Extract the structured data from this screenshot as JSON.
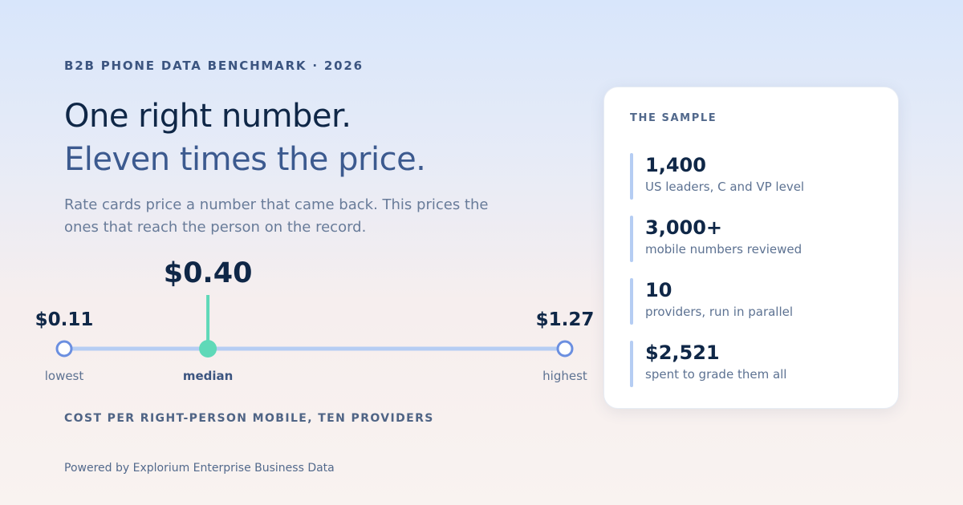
{
  "eyebrow": "B2B PHONE DATA BENCHMARK · 2026",
  "headline": {
    "line1": "One right number.",
    "line2": "Eleven times the price."
  },
  "subcopy": "Rate cards price a number that came back. This prices the ones that reach the person on the record.",
  "range": {
    "lowest": {
      "value": 0.11,
      "value_label": "$0.11",
      "label": "lowest"
    },
    "median": {
      "value": 0.4,
      "value_label": "$0.40",
      "label": "median"
    },
    "highest": {
      "value": 1.27,
      "value_label": "$1.27",
      "label": "highest"
    },
    "colors": {
      "track": "#b5cdf3",
      "endpoint": "#6b8fe0",
      "median": "#5fd9b8",
      "text": "#0f2747"
    }
  },
  "axis_caption": "COST PER RIGHT-PERSON MOBILE, TEN PROVIDERS",
  "sample": {
    "title": "THE SAMPLE",
    "stats": [
      {
        "number": "1,400",
        "description": "US leaders, C and VP level"
      },
      {
        "number": "3,000+",
        "description": "mobile numbers reviewed"
      },
      {
        "number": "10",
        "description": "providers, run in parallel"
      },
      {
        "number": "$2,521",
        "description": "spent to grade them all"
      }
    ]
  },
  "footer": "Powered by Explorium Enterprise Business Data"
}
